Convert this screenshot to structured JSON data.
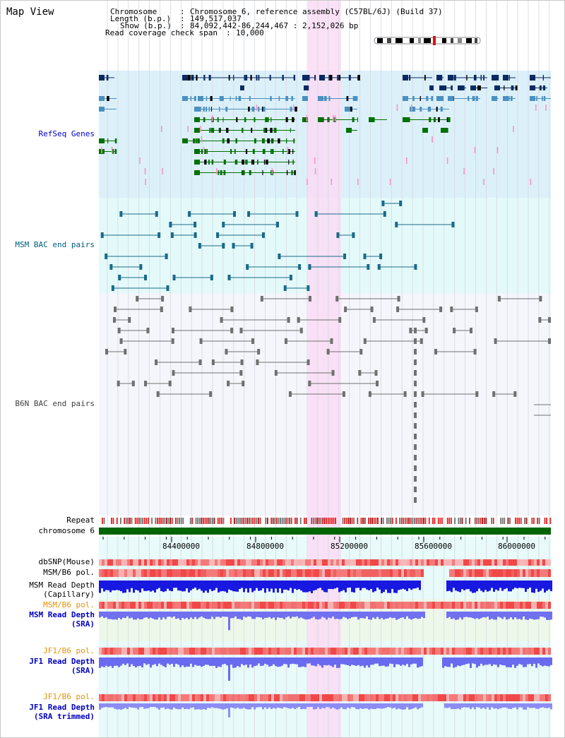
{
  "page": {
    "title": "Map View"
  },
  "header": {
    "chromosome_key": "Chromosome",
    "chromosome_value": "Chromosome 6, reference assembly (C57BL/6J) (Build 37)",
    "length_key": "Length (b.p.)",
    "length_value": "149,517,037",
    "show_key": "Show (b.p.)",
    "show_value": "84,092,442-86,244,467 : 2,152,026 bp",
    "coverage_key": "Read coverage check span",
    "coverage_value": "10,000"
  },
  "tracks": {
    "refseq": "RefSeq Genes",
    "msm_bac": "MSM BAC end pairs",
    "b6n_bac": "B6N BAC end pairs",
    "repeat": "Repeat",
    "chromosome": "chromosome 6",
    "dbsnp": "dbSNP(Mouse)",
    "msm_b6_pol_1": "MSM/B6 pol.",
    "msm_depth_cap_1": "MSM Read Depth",
    "msm_depth_cap_2": "(Capillary)",
    "msm_b6_pol_2": "MSM/B6 pol.",
    "msm_depth_sra_1": "MSM Read Depth",
    "msm_depth_sra_2": "(SRA)",
    "jf1_pol_1": "JF1/B6 pol.",
    "jf1_depth_1": "JF1 Read Depth",
    "jf1_depth_2": "(SRA)",
    "jf1_pol_2": "JF1/B6 pol.",
    "jf1_trim_1": "JF1 Read Depth",
    "jf1_trim_2": "(SRA trimmed)"
  },
  "axis": {
    "ticks": [
      "84400000",
      "84800000",
      "85200000",
      "85600000",
      "86000000"
    ]
  },
  "colors": {
    "refseq_bg": "#dcf0fa",
    "msm_bac_bg": "#e4fafa",
    "b6n_bac_bg": "#f4f6fc",
    "highlight": "#fadcf5",
    "refseq_label": "#0000c0",
    "msm_label": "#006080",
    "b6n_label": "#404040",
    "orange_label": "#e89000",
    "blue_label": "#0000c0",
    "gene_navy": "#0a2a60",
    "gene_steel": "#4a90c0",
    "gene_green": "#007000",
    "chromosome_bar": "#006400"
  }
}
